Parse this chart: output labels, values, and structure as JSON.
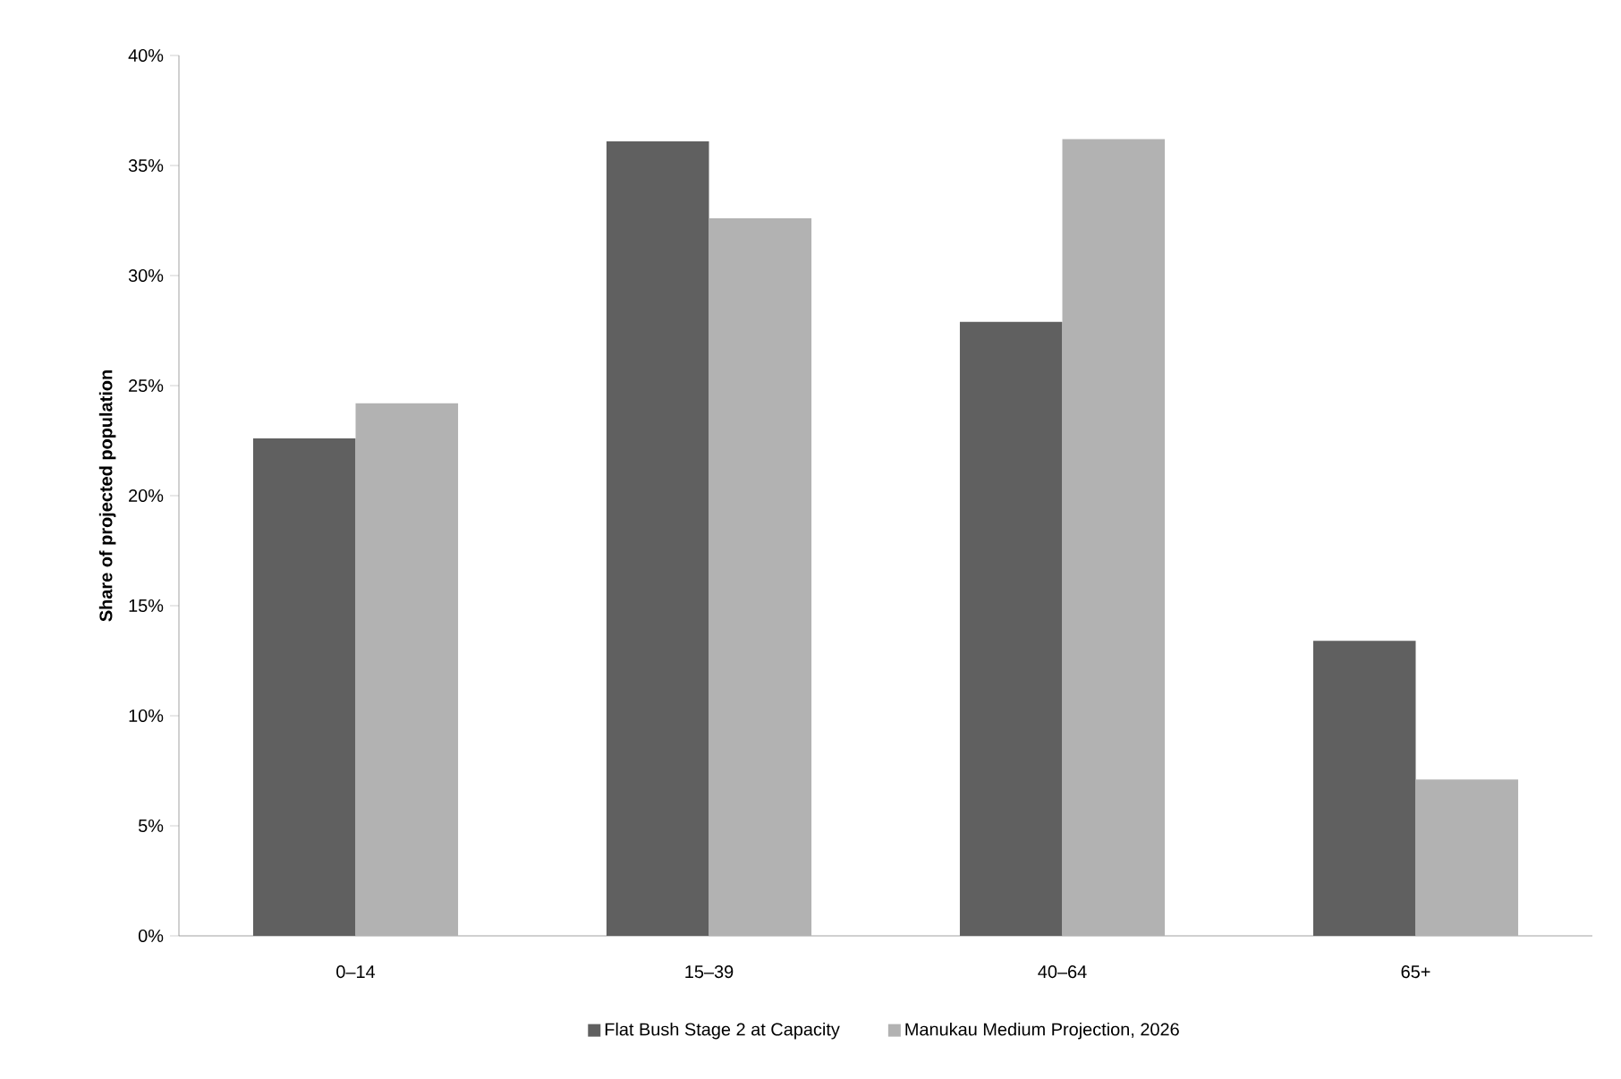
{
  "chart_data": {
    "type": "bar",
    "ylabel": "Share of projected population",
    "categories": [
      "0–14",
      "15–39",
      "40–64",
      "65+"
    ],
    "series": [
      {
        "name": "Flat Bush Stage 2 at Capacity",
        "color": "#606060",
        "values": [
          22.6,
          36.1,
          27.9,
          13.4
        ]
      },
      {
        "name": "Manukau Medium Projection, 2026",
        "color": "#b2b2b2",
        "values": [
          24.2,
          32.6,
          36.2,
          7.1
        ]
      }
    ],
    "ylim": [
      0,
      40
    ],
    "yticks": [
      {
        "value": 0,
        "label": "0%"
      },
      {
        "value": 5,
        "label": "5%"
      },
      {
        "value": 10,
        "label": "10%"
      },
      {
        "value": 15,
        "label": "15%"
      },
      {
        "value": 20,
        "label": "20%"
      },
      {
        "value": 25,
        "label": "25%"
      },
      {
        "value": 30,
        "label": "30%"
      },
      {
        "value": 35,
        "label": "35%"
      },
      {
        "value": 40,
        "label": "40%"
      }
    ],
    "grid": false,
    "legend": "bottom"
  }
}
